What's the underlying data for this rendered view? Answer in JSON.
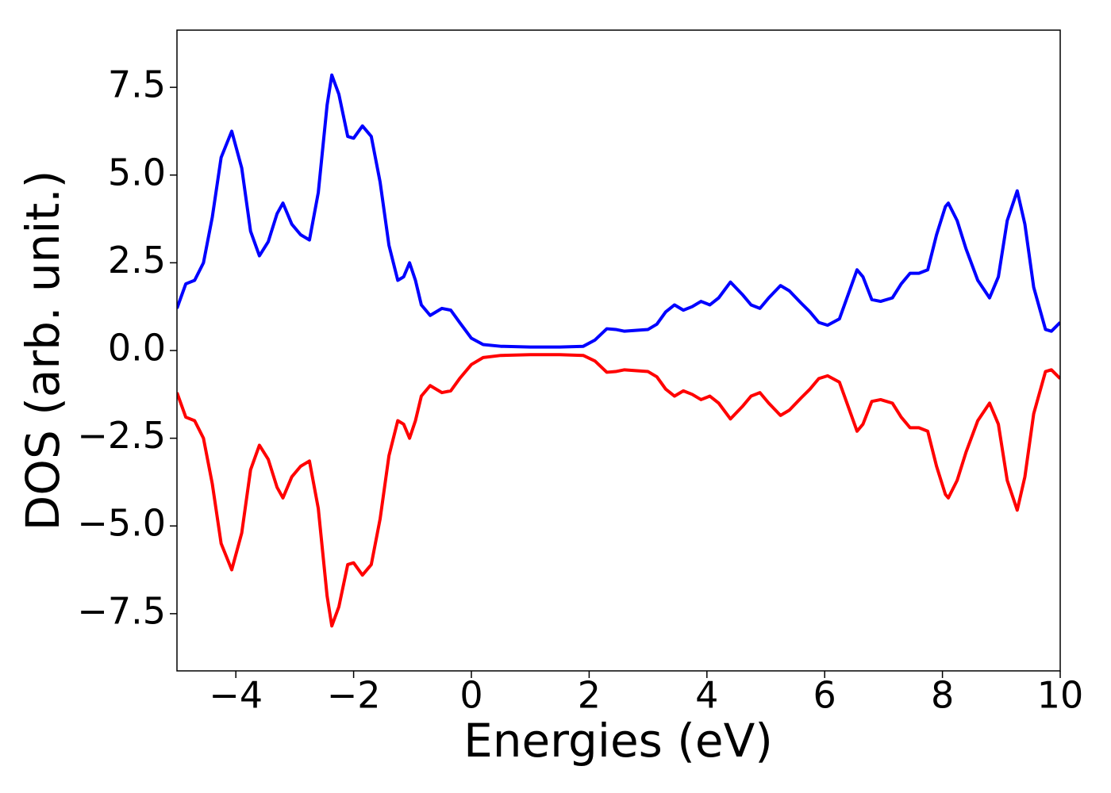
{
  "chart_data": {
    "type": "line",
    "xlabel": "Energies (eV)",
    "ylabel": "DOS (arb. unit.)",
    "x": [
      -5,
      -4.85,
      -4.7,
      -4.55,
      -4.4,
      -4.25,
      -4.07,
      -3.9,
      -3.75,
      -3.6,
      -3.45,
      -3.3,
      -3.2,
      -3.05,
      -2.9,
      -2.75,
      -2.6,
      -2.45,
      -2.37,
      -2.25,
      -2.1,
      -2.0,
      -1.85,
      -1.7,
      -1.55,
      -1.4,
      -1.25,
      -1.15,
      -1.05,
      -0.95,
      -0.85,
      -0.7,
      -0.5,
      -0.35,
      -0.2,
      0,
      0.2,
      0.5,
      1.0,
      1.5,
      1.9,
      2.1,
      2.3,
      2.45,
      2.6,
      3.0,
      3.15,
      3.3,
      3.45,
      3.6,
      3.75,
      3.9,
      4.05,
      4.2,
      4.4,
      4.6,
      4.75,
      4.9,
      5.05,
      5.25,
      5.4,
      5.6,
      5.75,
      5.9,
      6.05,
      6.25,
      6.4,
      6.55,
      6.65,
      6.8,
      6.95,
      7.15,
      7.3,
      7.45,
      7.6,
      7.75,
      7.9,
      8.05,
      8.1,
      8.25,
      8.4,
      8.6,
      8.8,
      8.95,
      9.1,
      9.27,
      9.4,
      9.55,
      9.75,
      9.85,
      10
    ],
    "series": [
      {
        "color": "#0000ff",
        "values": [
          1.2,
          1.9,
          2.0,
          2.5,
          3.8,
          5.5,
          6.25,
          5.2,
          3.4,
          2.7,
          3.1,
          3.9,
          4.2,
          3.6,
          3.3,
          3.15,
          4.5,
          7.0,
          7.85,
          7.3,
          6.1,
          6.05,
          6.4,
          6.1,
          4.8,
          3.0,
          2.0,
          2.1,
          2.5,
          2.0,
          1.3,
          1.0,
          1.2,
          1.15,
          0.8,
          0.35,
          0.17,
          0.12,
          0.1,
          0.1,
          0.12,
          0.3,
          0.62,
          0.6,
          0.55,
          0.6,
          0.75,
          1.1,
          1.3,
          1.15,
          1.25,
          1.4,
          1.3,
          1.5,
          1.95,
          1.6,
          1.3,
          1.2,
          1.5,
          1.85,
          1.7,
          1.35,
          1.1,
          0.8,
          0.72,
          0.9,
          1.6,
          2.3,
          2.1,
          1.45,
          1.4,
          1.5,
          1.9,
          2.2,
          2.2,
          2.3,
          3.3,
          4.1,
          4.2,
          3.7,
          2.9,
          2.0,
          1.5,
          2.1,
          3.7,
          4.55,
          3.6,
          1.8,
          0.6,
          0.55,
          0.8
        ]
      },
      {
        "color": "#ff0000",
        "values": [
          -1.2,
          -1.9,
          -2.0,
          -2.5,
          -3.8,
          -5.5,
          -6.25,
          -5.2,
          -3.4,
          -2.7,
          -3.1,
          -3.9,
          -4.2,
          -3.6,
          -3.3,
          -3.15,
          -4.5,
          -7.0,
          -7.85,
          -7.3,
          -6.1,
          -6.05,
          -6.4,
          -6.1,
          -4.8,
          -3.0,
          -2.0,
          -2.1,
          -2.5,
          -2.0,
          -1.3,
          -1.0,
          -1.2,
          -1.15,
          -0.8,
          -0.4,
          -0.2,
          -0.14,
          -0.12,
          -0.12,
          -0.14,
          -0.3,
          -0.62,
          -0.6,
          -0.55,
          -0.6,
          -0.75,
          -1.1,
          -1.3,
          -1.15,
          -1.25,
          -1.4,
          -1.3,
          -1.5,
          -1.95,
          -1.6,
          -1.3,
          -1.2,
          -1.5,
          -1.85,
          -1.7,
          -1.35,
          -1.1,
          -0.8,
          -0.72,
          -0.9,
          -1.6,
          -2.3,
          -2.1,
          -1.45,
          -1.4,
          -1.5,
          -1.9,
          -2.2,
          -2.2,
          -2.3,
          -3.3,
          -4.1,
          -4.2,
          -3.7,
          -2.9,
          -2.0,
          -1.5,
          -2.1,
          -3.7,
          -4.55,
          -3.6,
          -1.8,
          -0.6,
          -0.55,
          -0.8
        ]
      }
    ],
    "xlim": [
      -5,
      10
    ],
    "xticks": [
      {
        "value": -4,
        "label": "−4"
      },
      {
        "value": -2,
        "label": "−2"
      },
      0,
      2,
      4,
      6,
      8,
      10
    ],
    "ylim": [
      -9.13,
      9.13
    ],
    "yticks": [
      {
        "value": -7.5,
        "label": "−7.5"
      },
      {
        "value": -5,
        "label": "−5.0"
      },
      {
        "value": -2.5,
        "label": "−2.5"
      },
      {
        "value": 0,
        "label": "0.0"
      },
      {
        "value": 2.5,
        "label": "2.5"
      },
      {
        "value": 5,
        "label": "5.0"
      },
      {
        "value": 7.5,
        "label": "7.5"
      }
    ],
    "grid": false
  }
}
